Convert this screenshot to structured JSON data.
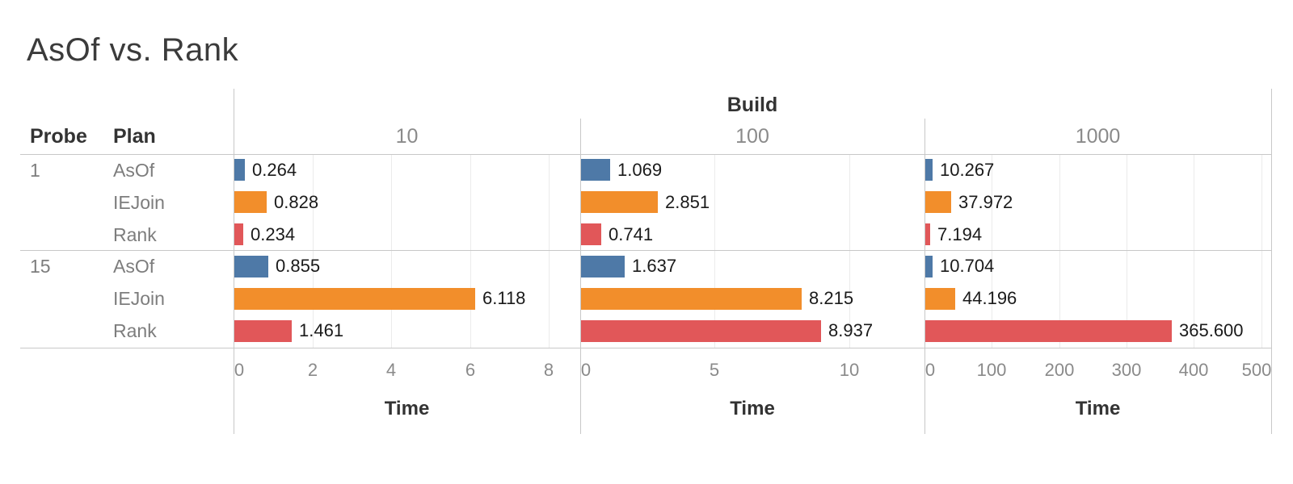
{
  "title": "AsOf vs. Rank",
  "colors": {
    "asof_blue": "#4e79a7",
    "iejoin_orange": "#f28e2b",
    "rank_red": "#e15759",
    "axis_text": "#8a8a8a",
    "value_text": "#1a1a1a",
    "row_text": "#7d7d7d",
    "header_text": "#333333",
    "border": "#c8c8c8",
    "gridline": "#ebebeb"
  },
  "chart_data": {
    "type": "bar",
    "orientation": "horizontal",
    "title": "AsOf vs. Rank",
    "column_field": "Build",
    "row_fields": [
      "Probe",
      "Plan"
    ],
    "xlabel": "Time",
    "grid": true,
    "legend_position": "none",
    "columns": [
      {
        "label": "10",
        "xticks": [
          0,
          2,
          4,
          6,
          8
        ],
        "xmax": 8.8
      },
      {
        "label": "100",
        "xticks": [
          0,
          5,
          10
        ],
        "xmax": 12.8
      },
      {
        "label": "1000",
        "xticks": [
          0,
          100,
          200,
          300,
          400,
          500
        ],
        "xmax": 515
      }
    ],
    "groups": [
      {
        "probe": "1",
        "rows": [
          {
            "plan": "AsOf",
            "color": "#4e79a7",
            "values": [
              0.264,
              1.069,
              10.267
            ],
            "labels": [
              "0.264",
              "1.069",
              "10.267"
            ]
          },
          {
            "plan": "IEJoin",
            "color": "#f28e2b",
            "values": [
              0.828,
              2.851,
              37.972
            ],
            "labels": [
              "0.828",
              "2.851",
              "37.972"
            ]
          },
          {
            "plan": "Rank",
            "color": "#e15759",
            "values": [
              0.234,
              0.741,
              7.194
            ],
            "labels": [
              "0.234",
              "0.741",
              "7.194"
            ]
          }
        ]
      },
      {
        "probe": "15",
        "rows": [
          {
            "plan": "AsOf",
            "color": "#4e79a7",
            "values": [
              0.855,
              1.637,
              10.704
            ],
            "labels": [
              "0.855",
              "1.637",
              "10.704"
            ]
          },
          {
            "plan": "IEJoin",
            "color": "#f28e2b",
            "values": [
              6.118,
              8.215,
              44.196
            ],
            "labels": [
              "6.118",
              "8.215",
              "44.196"
            ]
          },
          {
            "plan": "Rank",
            "color": "#e15759",
            "values": [
              1.461,
              8.937,
              365.6
            ],
            "labels": [
              "1.461",
              "8.937",
              "365.600"
            ]
          }
        ]
      }
    ]
  }
}
